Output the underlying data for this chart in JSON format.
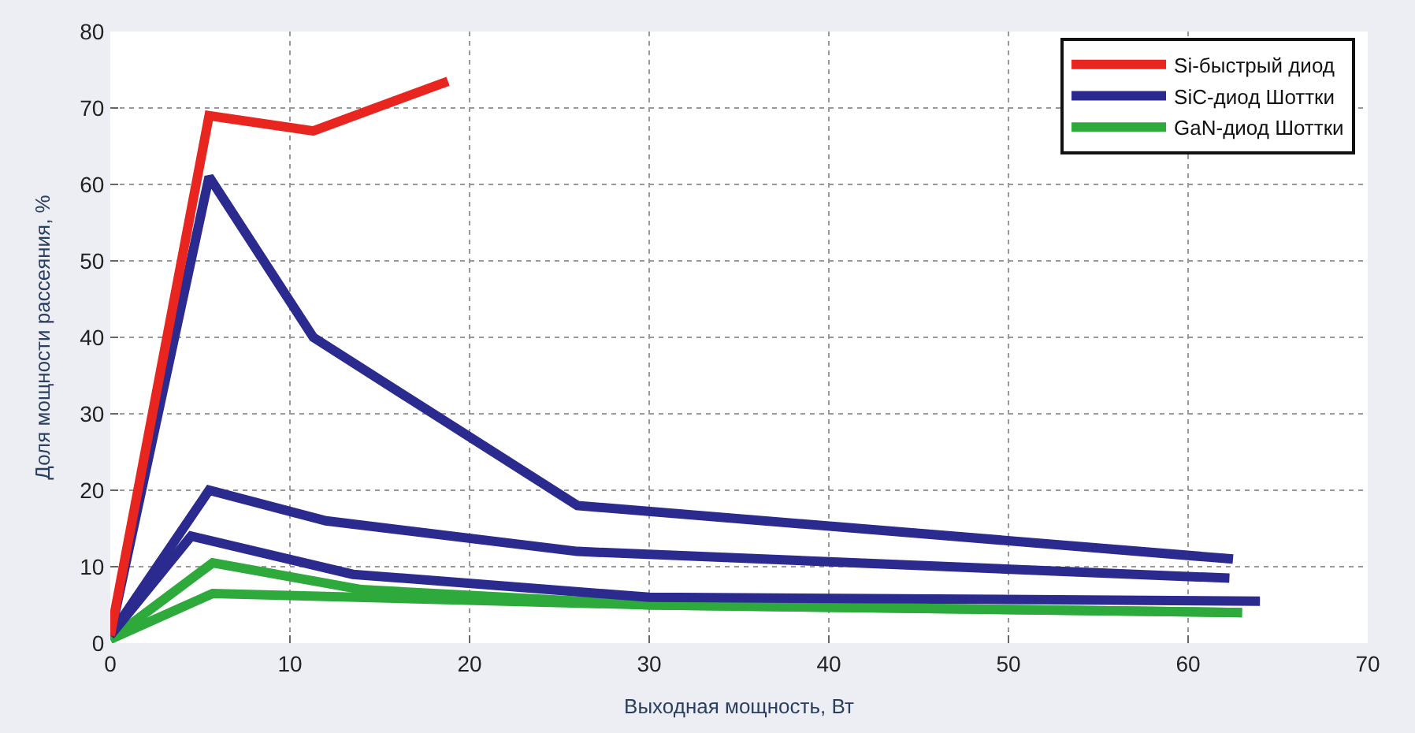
{
  "chart_data": {
    "type": "line",
    "xlabel": "Выходная мощность, Вт",
    "ylabel": "Доля мощности рассеяния, %",
    "xlim": [
      0,
      70
    ],
    "xticks": [
      0,
      10,
      20,
      30,
      40,
      50,
      60,
      70
    ],
    "ylim": [
      0,
      80
    ],
    "yticks": [
      0,
      10,
      20,
      30,
      40,
      50,
      60,
      70,
      80
    ],
    "grid": true,
    "legend": "top right",
    "marker": "none",
    "line_style": "solid",
    "series": [
      {
        "name": "Si-быстрый диод",
        "color": "#e8261f",
        "x": [
          0,
          5.5,
          11.3,
          18.8
        ],
        "values": [
          1,
          69,
          67,
          73.5
        ]
      },
      {
        "name": "SiC-диод Шоттки",
        "color": "#2b2a8e",
        "x": [
          0,
          5.5,
          11.3,
          26,
          62.5
        ],
        "values": [
          1,
          61,
          40,
          18,
          11
        ]
      },
      {
        "color": "#2b2a8e",
        "x": [
          0,
          5.5,
          12,
          26,
          62.3
        ],
        "values": [
          1,
          20,
          16,
          12,
          8.5
        ]
      },
      {
        "color": "#2b2a8e",
        "x": [
          0,
          4.5,
          13.5,
          30,
          64
        ],
        "values": [
          1,
          14,
          9,
          6,
          5.5
        ]
      },
      {
        "name": "GaN-диод Шоттки",
        "color": "#2eaa3c",
        "x": [
          0,
          5.7,
          14,
          30,
          63
        ],
        "values": [
          0.5,
          10.5,
          7,
          5,
          4
        ]
      },
      {
        "color": "#2eaa3c",
        "x": [
          0,
          5.7,
          30,
          63
        ],
        "values": [
          0.5,
          6.5,
          5,
          4
        ]
      }
    ]
  }
}
